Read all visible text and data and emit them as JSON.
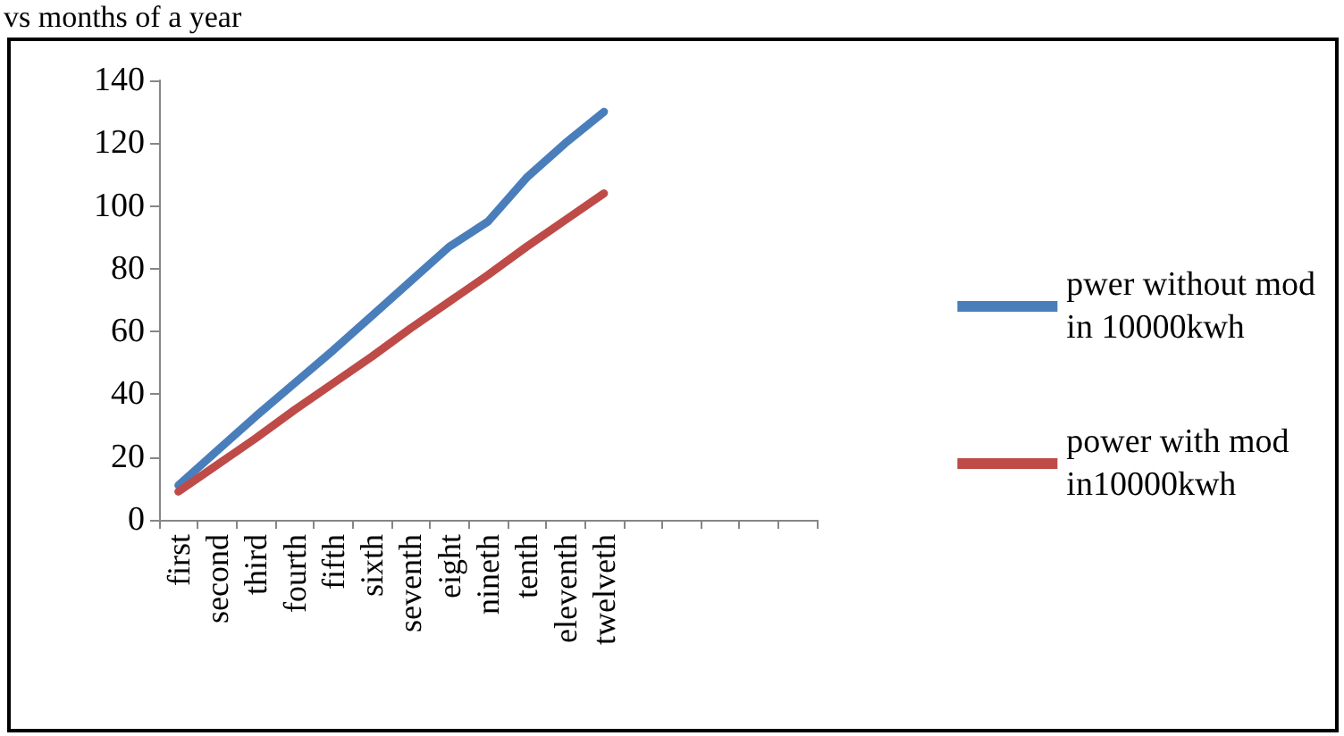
{
  "chart_data": {
    "type": "line",
    "title": "vs months of a year",
    "categories": [
      "first",
      "second",
      "third",
      "fourth",
      "fifth",
      "sixth",
      "seventh",
      "eight",
      "nineth",
      "tenth",
      "eleventh",
      "twelveth",
      null,
      null,
      null,
      null,
      null
    ],
    "series": [
      {
        "name": "pwer without mod\nin 10000kwh",
        "color": "#4a7ebb",
        "values": [
          11,
          22,
          33,
          43.5,
          54,
          65,
          76,
          87,
          95,
          109,
          120,
          130,
          null,
          null,
          null,
          null,
          null
        ]
      },
      {
        "name": "power with mod\nin10000kwh",
        "color": "#be4b48",
        "values": [
          9,
          17.5,
          26,
          35,
          43.5,
          52,
          61,
          69.5,
          78,
          87,
          95.5,
          104,
          null,
          null,
          null,
          null,
          null
        ]
      }
    ],
    "ylim": [
      0,
      140
    ],
    "yticks": [
      0,
      20,
      40,
      60,
      80,
      100,
      120,
      140
    ],
    "grid": false,
    "legend": "right",
    "marker": "none",
    "line_style": "solid"
  }
}
